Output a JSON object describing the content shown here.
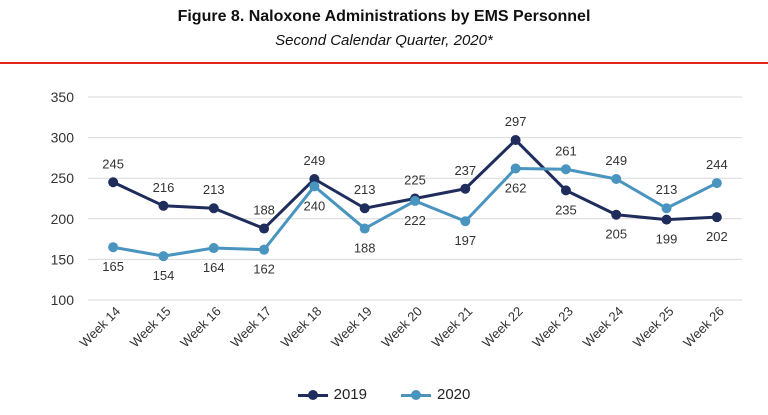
{
  "header": {
    "title": "Figure 8. Naloxone Administrations by EMS Personnel",
    "subtitle": "Second Calendar Quarter, 2020*"
  },
  "colors": {
    "rule": "#e4241c",
    "series_2019": "#1f2d5c",
    "series_2020": "#4a94c0",
    "grid": "#d9d9d9"
  },
  "chart_data": {
    "type": "line",
    "title": "Figure 8. Naloxone Administrations by EMS Personnel",
    "subtitle": "Second Calendar Quarter, 2020*",
    "categories": [
      "Week 14",
      "Week 15",
      "Week 16",
      "Week 17",
      "Week 18",
      "Week 19",
      "Week 20",
      "Week 21",
      "Week 22",
      "Week 23",
      "Week 24",
      "Week 25",
      "Week 26"
    ],
    "series": [
      {
        "name": "2019",
        "color": "#1f2d5c",
        "values": [
          245,
          216,
          213,
          188,
          249,
          213,
          225,
          237,
          297,
          235,
          205,
          199,
          202
        ]
      },
      {
        "name": "2020",
        "color": "#4a94c0",
        "values": [
          165,
          154,
          164,
          162,
          240,
          188,
          222,
          197,
          262,
          261,
          249,
          213,
          244
        ]
      }
    ],
    "ylim": [
      100,
      350
    ],
    "yticks": [
      100,
      150,
      200,
      250,
      300,
      350
    ],
    "grid": true,
    "legend": "bottom-center",
    "xlabel": "",
    "ylabel": ""
  },
  "legend": {
    "items": [
      {
        "label": "2019"
      },
      {
        "label": "2020"
      }
    ]
  }
}
